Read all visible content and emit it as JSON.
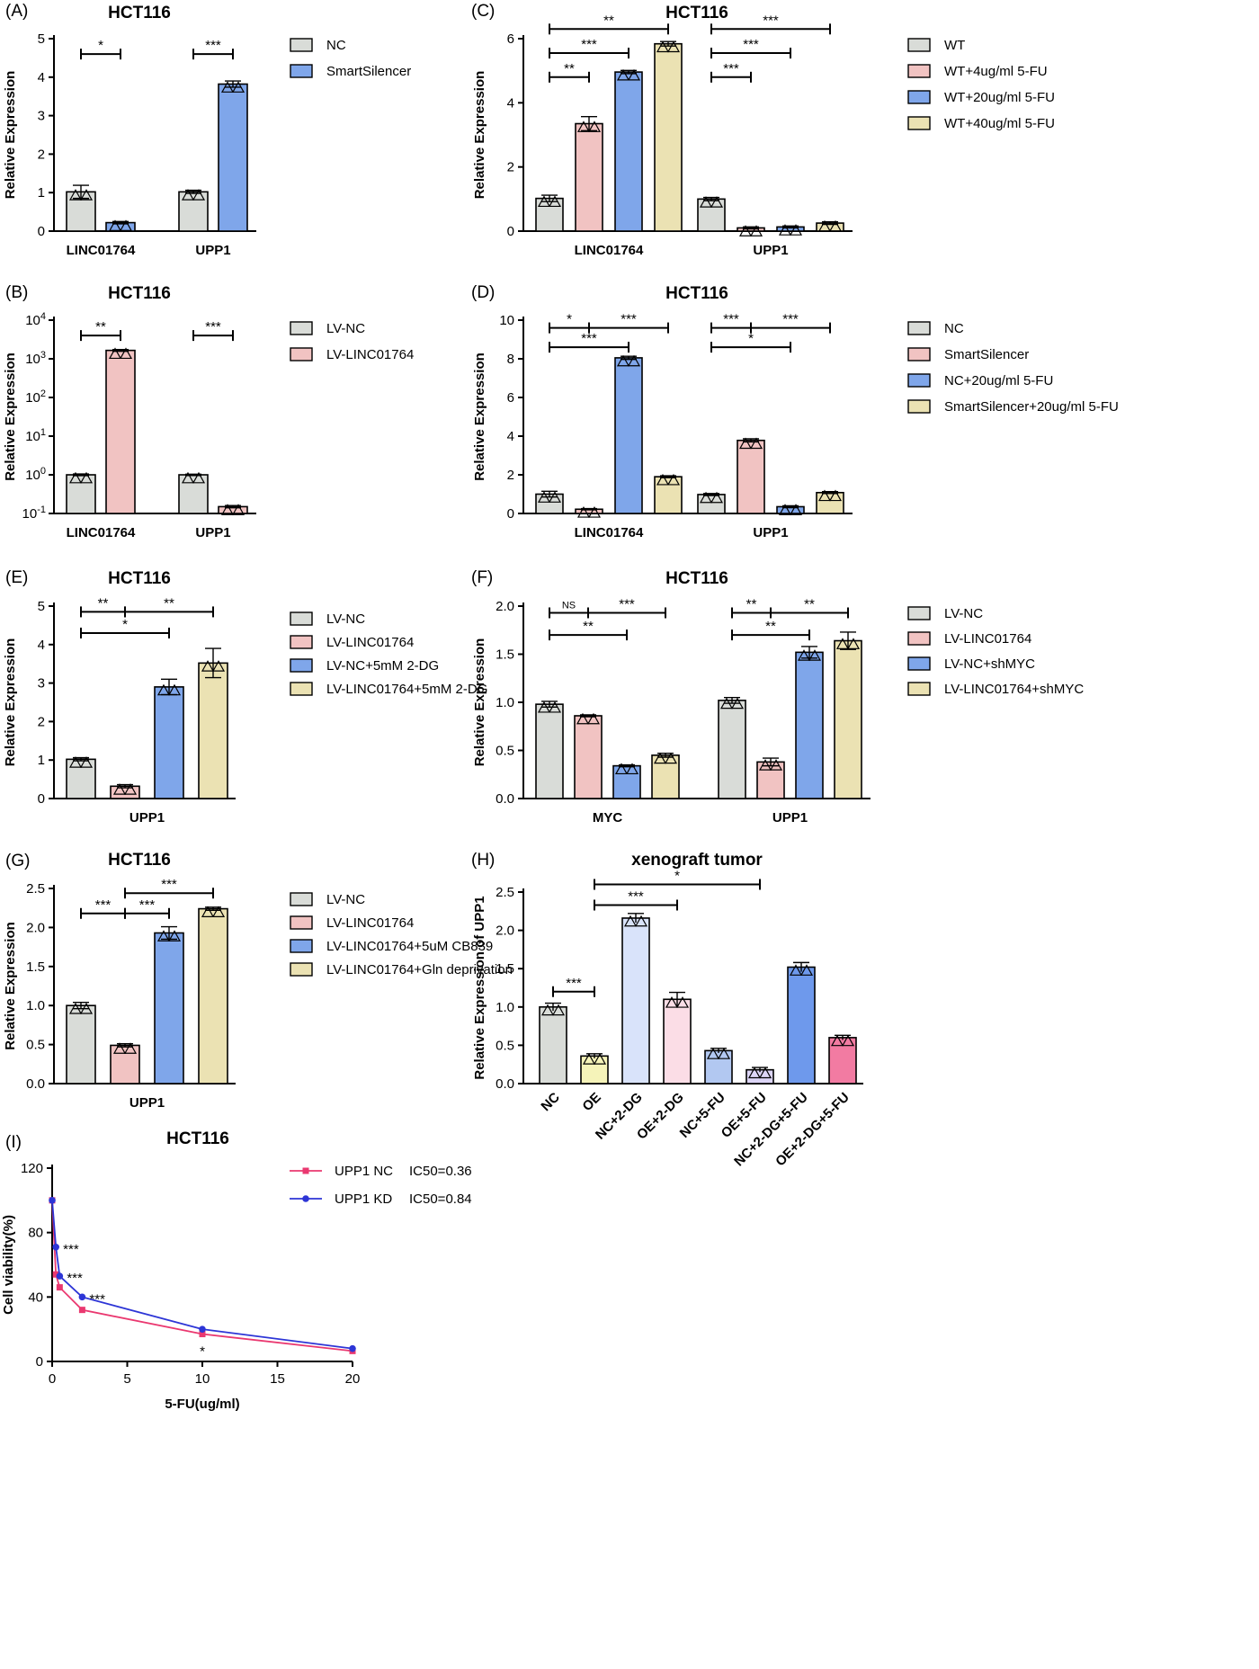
{
  "colors": {
    "grey": "#d9dcd8",
    "pink": "#f1c3c2",
    "blue": "#7fa6ea",
    "yellow": "#ebe2b3",
    "h_yellow": "#f5f3b9",
    "h_lightblue": "#d9e3fa",
    "h_lightpink": "#fbdde6",
    "h_blue": "#b2c8f1",
    "h_lavender": "#dcd5f6",
    "h_medblue": "#6e99ec",
    "h_hotpink": "#f27ba2",
    "ic_nc": "#ea3870",
    "ic_kd": "#2d35d6"
  },
  "chart_data": [
    {
      "id": "A",
      "panel_label": "(A)",
      "type": "bar",
      "title": "HCT116",
      "ylabel": "Relative Expression",
      "xlabel": "",
      "ylim": [
        0,
        5
      ],
      "yticks": [
        "0",
        "1",
        "2",
        "3",
        "4",
        "5"
      ],
      "categories": [
        "LINC01764",
        "UPP1"
      ],
      "series": [
        {
          "name": "NC",
          "color": "grey",
          "values": [
            1.02,
            1.02
          ],
          "errors": [
            0.17,
            0.04
          ]
        },
        {
          "name": "SmartSilencer",
          "color": "blue",
          "values": [
            0.22,
            3.82
          ],
          "errors": [
            0.03,
            0.08
          ]
        }
      ],
      "significance": [
        {
          "label": "*",
          "cat": 0,
          "from": 0,
          "to": 1,
          "level": 4.6
        },
        {
          "label": "***",
          "cat": 1,
          "from": 0,
          "to": 1,
          "level": 4.6
        }
      ]
    },
    {
      "id": "C",
      "panel_label": "(C)",
      "type": "bar",
      "title": "HCT116",
      "ylabel": "Relative Expression",
      "xlabel": "",
      "ylim": [
        0,
        6
      ],
      "yticks": [
        "0",
        "2",
        "4",
        "6"
      ],
      "categories": [
        "LINC01764",
        "UPP1"
      ],
      "series": [
        {
          "name": "WT",
          "color": "grey",
          "values": [
            1.02,
            1.0
          ],
          "errors": [
            0.1,
            0.05
          ]
        },
        {
          "name": "WT+4ug/ml 5-FU",
          "color": "pink",
          "values": [
            3.35,
            0.1
          ],
          "errors": [
            0.22,
            0.03
          ]
        },
        {
          "name": "WT+20ug/ml 5-FU",
          "color": "blue",
          "values": [
            4.96,
            0.13
          ],
          "errors": [
            0.05,
            0.03
          ]
        },
        {
          "name": "WT+40ug/ml 5-FU",
          "color": "yellow",
          "values": [
            5.84,
            0.25
          ],
          "errors": [
            0.07,
            0.04
          ]
        }
      ],
      "significance": [
        {
          "label": "**",
          "cat": 0,
          "from": 0,
          "to": 1,
          "level": 4.8
        },
        {
          "label": "***",
          "cat": 0,
          "from": 0,
          "to": 2,
          "level": 5.55
        },
        {
          "label": "**",
          "cat": 0,
          "from": 0,
          "to": 3,
          "level": 6.3
        },
        {
          "label": "***",
          "cat": 1,
          "from": 0,
          "to": 1,
          "level": 4.8
        },
        {
          "label": "***",
          "cat": 1,
          "from": 0,
          "to": 2,
          "level": 5.55
        },
        {
          "label": "***",
          "cat": 1,
          "from": 0,
          "to": 3,
          "level": 6.3
        }
      ]
    },
    {
      "id": "B",
      "panel_label": "(B)",
      "type": "bar",
      "title": "HCT116",
      "ylabel": "Relative Expression",
      "xlabel": "",
      "log": true,
      "ylim": [
        0.1,
        10000
      ],
      "yticks": [
        "10-1",
        "100",
        "101",
        "102",
        "103",
        "104"
      ],
      "categories": [
        "LINC01764",
        "UPP1"
      ],
      "series": [
        {
          "name": "LV-NC",
          "color": "grey",
          "values": [
            1.0,
            1.0
          ],
          "errors": [
            0.05,
            0.04
          ]
        },
        {
          "name": "LV-LINC01764",
          "color": "pink",
          "values": [
            1650,
            0.15
          ],
          "errors": [
            90,
            0.01
          ]
        }
      ],
      "significance": [
        {
          "label": "**",
          "cat": 0,
          "from": 0,
          "to": 1,
          "level": 4000
        },
        {
          "label": "***",
          "cat": 1,
          "from": 0,
          "to": 1,
          "level": 4000
        }
      ]
    },
    {
      "id": "D",
      "panel_label": "(D)",
      "type": "bar",
      "title": "HCT116",
      "ylabel": "Relative Expression",
      "xlabel": "",
      "ylim": [
        0,
        10
      ],
      "yticks": [
        "0",
        "2",
        "4",
        "6",
        "8",
        "10"
      ],
      "categories": [
        "LINC01764",
        "UPP1"
      ],
      "series": [
        {
          "name": "NC",
          "color": "grey",
          "values": [
            1.0,
            0.98
          ],
          "errors": [
            0.15,
            0.05
          ]
        },
        {
          "name": "SmartSilencer",
          "color": "pink",
          "values": [
            0.22,
            3.78
          ],
          "errors": [
            0.03,
            0.08
          ]
        },
        {
          "name": "NC+20ug/ml 5-FU",
          "color": "blue",
          "values": [
            8.05,
            0.35
          ],
          "errors": [
            0.08,
            0.05
          ]
        },
        {
          "name": "SmartSilencer+20ug/ml 5-FU",
          "color": "yellow",
          "values": [
            1.9,
            1.08
          ],
          "errors": [
            0.05,
            0.05
          ]
        }
      ],
      "significance": [
        {
          "label": "*",
          "cat": 0,
          "from": 0,
          "to": 1,
          "level": 9.6
        },
        {
          "label": "***",
          "cat": 0,
          "from": 1,
          "to": 3,
          "level": 9.6
        },
        {
          "label": "***",
          "cat": 0,
          "from": 0,
          "to": 2,
          "level": 8.6
        },
        {
          "label": "***",
          "cat": 1,
          "from": 0,
          "to": 1,
          "level": 9.6
        },
        {
          "label": "***",
          "cat": 1,
          "from": 1,
          "to": 3,
          "level": 9.6
        },
        {
          "label": "*",
          "cat": 1,
          "from": 0,
          "to": 2,
          "level": 8.6
        }
      ]
    },
    {
      "id": "E",
      "panel_label": "(E)",
      "type": "bar",
      "title": "HCT116",
      "ylabel": "Relative Expression",
      "xlabel": "",
      "ylim": [
        0,
        5
      ],
      "yticks": [
        "0",
        "1",
        "2",
        "3",
        "4",
        "5"
      ],
      "categories": [
        "UPP1"
      ],
      "series": [
        {
          "name": "LV-NC",
          "color": "grey",
          "values": [
            1.02
          ],
          "errors": [
            0.04
          ]
        },
        {
          "name": "LV-LINC01764",
          "color": "pink",
          "values": [
            0.32
          ],
          "errors": [
            0.04
          ]
        },
        {
          "name": "LV-NC+5mM 2-DG",
          "color": "blue",
          "values": [
            2.9
          ],
          "errors": [
            0.2
          ]
        },
        {
          "name": "LV-LINC01764+5mM 2-DG",
          "color": "yellow",
          "values": [
            3.52
          ],
          "errors": [
            0.38
          ]
        }
      ],
      "significance": [
        {
          "label": "**",
          "cat": 0,
          "from": 0,
          "to": 1,
          "level": 4.85
        },
        {
          "label": "**",
          "cat": 0,
          "from": 1,
          "to": 3,
          "level": 4.85
        },
        {
          "label": "*",
          "cat": 0,
          "from": 0,
          "to": 2,
          "level": 4.3
        }
      ]
    },
    {
      "id": "F",
      "panel_label": "(F)",
      "type": "bar",
      "title": "HCT116",
      "ylabel": "Relative Expression",
      "xlabel": "",
      "ylim": [
        0,
        2.0
      ],
      "yticks": [
        "0.0",
        "0.5",
        "1.0",
        "1.5",
        "2.0"
      ],
      "categories": [
        "MYC",
        "UPP1"
      ],
      "series": [
        {
          "name": "LV-NC",
          "color": "grey",
          "values": [
            0.98,
            1.02
          ],
          "errors": [
            0.03,
            0.03
          ]
        },
        {
          "name": "LV-LINC01764",
          "color": "pink",
          "values": [
            0.86,
            0.38
          ],
          "errors": [
            0.01,
            0.04
          ]
        },
        {
          "name": "LV-NC+shMYC",
          "color": "blue",
          "values": [
            0.34,
            1.52
          ],
          "errors": [
            0.01,
            0.06
          ]
        },
        {
          "name": "LV-LINC01764+shMYC",
          "color": "yellow",
          "values": [
            0.45,
            1.64
          ],
          "errors": [
            0.02,
            0.09
          ]
        }
      ],
      "significance": [
        {
          "label": "NS",
          "cat": 0,
          "from": 0,
          "to": 1,
          "level": 1.93,
          "small": true
        },
        {
          "label": "***",
          "cat": 0,
          "from": 1,
          "to": 3,
          "level": 1.93
        },
        {
          "label": "**",
          "cat": 0,
          "from": 0,
          "to": 2,
          "level": 1.7
        },
        {
          "label": "**",
          "cat": 1,
          "from": 0,
          "to": 1,
          "level": 1.93
        },
        {
          "label": "**",
          "cat": 1,
          "from": 1,
          "to": 3,
          "level": 1.93
        },
        {
          "label": "**",
          "cat": 1,
          "from": 0,
          "to": 2,
          "level": 1.7
        }
      ]
    },
    {
      "id": "G",
      "panel_label": "(G)",
      "type": "bar",
      "title": "HCT116",
      "ylabel": "Relative Expression",
      "xlabel": "",
      "ylim": [
        0,
        2.5
      ],
      "yticks": [
        "0.0",
        "0.5",
        "1.0",
        "1.5",
        "2.0",
        "2.5"
      ],
      "categories": [
        "UPP1"
      ],
      "series": [
        {
          "name": "LV-NC",
          "color": "grey",
          "values": [
            1.0
          ],
          "errors": [
            0.04
          ]
        },
        {
          "name": "LV-LINC01764",
          "color": "pink",
          "values": [
            0.49
          ],
          "errors": [
            0.02
          ]
        },
        {
          "name": "LV-LINC01764+5uM CB839",
          "color": "blue",
          "values": [
            1.93
          ],
          "errors": [
            0.08
          ]
        },
        {
          "name": "LV-LINC01764+Gln deprivation",
          "color": "yellow",
          "values": [
            2.24
          ],
          "errors": [
            0.02
          ]
        }
      ],
      "significance": [
        {
          "label": "***",
          "cat": 0,
          "from": 0,
          "to": 1,
          "level": 2.18
        },
        {
          "label": "***",
          "cat": 0,
          "from": 1,
          "to": 2,
          "level": 2.18
        },
        {
          "label": "***",
          "cat": 0,
          "from": 1,
          "to": 3,
          "level": 2.44
        }
      ]
    },
    {
      "id": "H",
      "panel_label": "(H)",
      "type": "bar",
      "title": "xenograft tumor",
      "ylabel": "Relative Expression of UPP1",
      "xlabel": "",
      "ylim": [
        0,
        2.5
      ],
      "yticks": [
        "0.0",
        "0.5",
        "1.0",
        "1.5",
        "2.0",
        "2.5"
      ],
      "categories": [
        "NC",
        "OE",
        "NC+2-DG",
        "OE+2-DG",
        "NC+5-FU",
        "OE+5-FU",
        "NC+2-DG+5-FU",
        "OE+2-DG+5-FU"
      ],
      "values": [
        1.0,
        0.36,
        2.16,
        1.1,
        0.43,
        0.18,
        1.52,
        0.6
      ],
      "errors": [
        0.05,
        0.03,
        0.06,
        0.09,
        0.03,
        0.03,
        0.06,
        0.03
      ],
      "bar_colors": [
        "grey",
        "h_yellow",
        "h_lightblue",
        "h_lightpink",
        "h_blue",
        "h_lavender",
        "h_medblue",
        "h_hotpink"
      ],
      "significance": [
        {
          "label": "***",
          "from": 0,
          "to": 1,
          "level": 1.2
        },
        {
          "label": "***",
          "from": 1,
          "to": 3,
          "level": 2.33
        },
        {
          "label": "*",
          "from": 1,
          "to": 5,
          "level": 2.6
        }
      ]
    },
    {
      "id": "I",
      "panel_label": "(I)",
      "type": "line",
      "title": "HCT116",
      "ylabel": "Cell viability(%)",
      "xlabel": "5-FU(ug/ml)",
      "xlim": [
        0,
        20
      ],
      "ylim": [
        0,
        120
      ],
      "xticks": [
        "0",
        "5",
        "10",
        "15",
        "20"
      ],
      "yticks": [
        "0",
        "40",
        "80",
        "120"
      ],
      "x": [
        0,
        0.25,
        0.5,
        2,
        10,
        20
      ],
      "series": [
        {
          "name": "UPP1 NC",
          "ic50": "IC50=0.36",
          "color": "ic_nc",
          "marker": "square",
          "values": [
            100,
            54,
            46,
            32,
            17,
            6.5
          ]
        },
        {
          "name": "UPP1 KD",
          "ic50": "IC50=0.84",
          "color": "ic_kd",
          "marker": "circle",
          "values": [
            100,
            71,
            53,
            40,
            20,
            8
          ]
        }
      ],
      "annotations": [
        {
          "label": "***",
          "x": 0.25,
          "y": 71
        },
        {
          "label": "***",
          "x": 0.5,
          "y": 53
        },
        {
          "label": "***",
          "x": 2,
          "y": 40
        },
        {
          "label": "*",
          "x": 10,
          "y": 17
        }
      ]
    }
  ]
}
